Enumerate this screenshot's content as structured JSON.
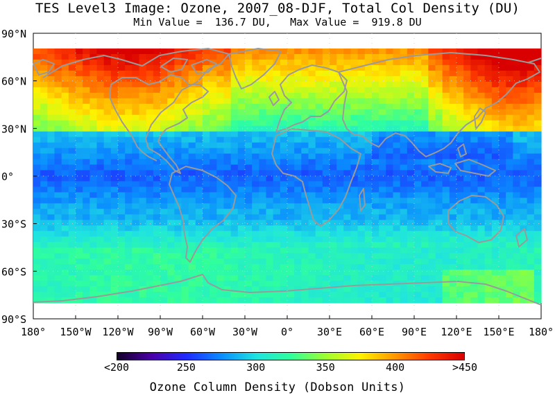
{
  "header": {
    "title": "TES Level3 Image: Ozone, 2007_08-DJF, Total Col Density (DU)",
    "min_label": "Min Value =",
    "min_value": "136.7 DU,",
    "max_label": "Max Value =",
    "max_value": "919.8 DU"
  },
  "map": {
    "lat_labels": [
      "90°N",
      "60°N",
      "30°N",
      "0°",
      "30°S",
      "60°S",
      "90°S"
    ],
    "lon_labels": [
      "180°",
      "150°W",
      "120°W",
      "90°W",
      "60°W",
      "30°W",
      "0°",
      "30°E",
      "60°E",
      "90°E",
      "120°E",
      "150°E",
      "180°"
    ]
  },
  "colorbar": {
    "labels": [
      "<200",
      "250",
      "300",
      "350",
      "400",
      ">450"
    ],
    "title": "Ozone Column Density (Dobson Units)",
    "colors": [
      "#14002a",
      "#4b00a8",
      "#1f2bff",
      "#0a8cff",
      "#1fe3e0",
      "#30ff9c",
      "#9cff30",
      "#fff200",
      "#ff9800",
      "#ff3a00",
      "#d80000"
    ]
  }
}
